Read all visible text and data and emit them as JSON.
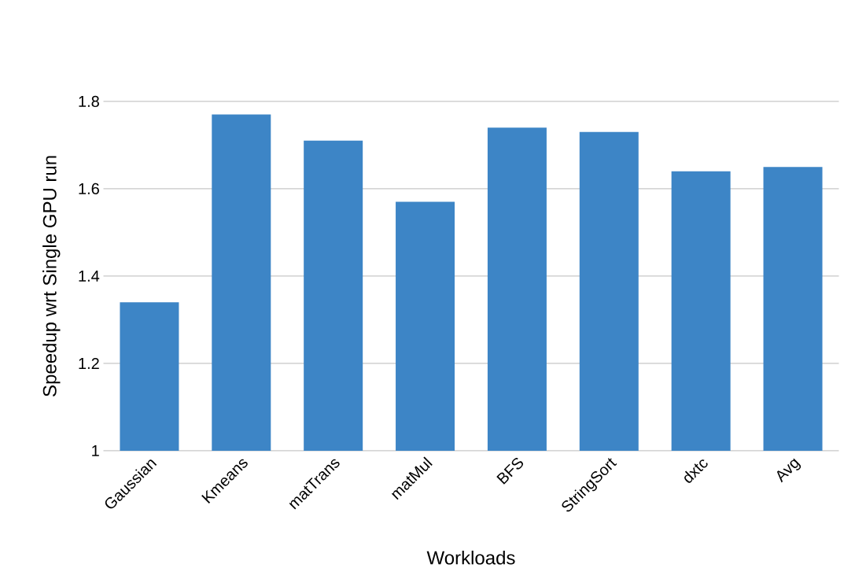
{
  "chart_data": {
    "type": "bar",
    "xlabel": "Workloads",
    "ylabel": "Speedup wrt Single GPU run",
    "categories": [
      "Gaussian",
      "Kmeans",
      "matTrans",
      "matMul",
      "BFS",
      "StringSort",
      "dxtc",
      "Avg"
    ],
    "values": [
      1.34,
      1.77,
      1.71,
      1.57,
      1.74,
      1.73,
      1.64,
      1.65
    ],
    "color": "#3d85c6",
    "ylim": [
      1,
      1.8
    ],
    "yticks": [
      1,
      1.2,
      1.4,
      1.6,
      1.8
    ],
    "grid": "y"
  }
}
